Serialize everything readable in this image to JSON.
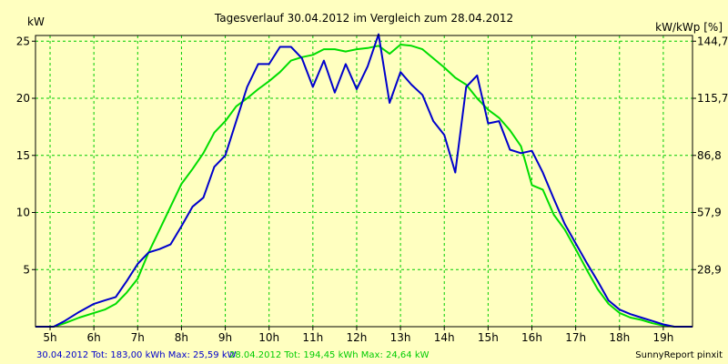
{
  "chart_data": {
    "type": "line",
    "title": "Tagesverlauf 30.04.2012 im Vergleich zum 28.04.2012",
    "ylabel_left": "kW",
    "ylabel_right": "kW/kWp [%]",
    "x_ticks": [
      "5h",
      "6h",
      "7h",
      "8h",
      "9h",
      "10h",
      "11h",
      "12h",
      "13h",
      "14h",
      "15h",
      "16h",
      "17h",
      "18h",
      "19h"
    ],
    "x_tick_values": [
      5,
      6,
      7,
      8,
      9,
      10,
      11,
      12,
      13,
      14,
      15,
      16,
      17,
      18,
      19
    ],
    "xlim": [
      4.667,
      19.667
    ],
    "y_ticks_left": [
      "5",
      "10",
      "15",
      "20",
      "25"
    ],
    "y_tick_values_left": [
      5,
      10,
      15,
      20,
      25
    ],
    "y_ticks_right": [
      "28,9",
      "57,9",
      "86,8",
      "115,7",
      "144,7"
    ],
    "ylim": [
      0,
      25.5
    ],
    "grid": true,
    "series": [
      {
        "name": "30.04.2012",
        "color": "#0000cc",
        "x": [
          4.667,
          5.083,
          5.333,
          5.667,
          6.0,
          6.25,
          6.5,
          6.75,
          7.0,
          7.25,
          7.5,
          7.75,
          8.0,
          8.25,
          8.5,
          8.75,
          9.0,
          9.25,
          9.5,
          9.75,
          10.0,
          10.25,
          10.5,
          10.75,
          11.0,
          11.25,
          11.5,
          11.75,
          12.0,
          12.25,
          12.5,
          12.75,
          13.0,
          13.25,
          13.5,
          13.75,
          14.0,
          14.25,
          14.5,
          14.75,
          15.0,
          15.25,
          15.5,
          15.75,
          16.0,
          16.25,
          16.5,
          16.75,
          17.0,
          17.25,
          17.5,
          17.75,
          18.0,
          18.25,
          18.5,
          18.75,
          19.0,
          19.25,
          19.667
        ],
        "y": [
          0,
          0,
          0.5,
          1.3,
          2,
          2.3,
          2.6,
          4,
          5.5,
          6.5,
          6.8,
          7.2,
          8.8,
          10.5,
          11.3,
          14,
          15,
          18,
          21,
          23,
          23,
          24.5,
          24.5,
          23.5,
          21,
          23.3,
          20.5,
          23,
          20.8,
          22.8,
          25.6,
          19.6,
          22.3,
          21.2,
          20.3,
          18,
          16.8,
          13.5,
          21,
          22,
          17.8,
          18,
          15.5,
          15.2,
          15.4,
          13.5,
          11.2,
          9,
          7.3,
          5.6,
          4,
          2.3,
          1.5,
          1.1,
          0.8,
          0.5,
          0.2,
          0,
          0
        ]
      },
      {
        "name": "28.04.2012",
        "color": "#00dd00",
        "x": [
          4.667,
          5.083,
          5.333,
          5.667,
          6.0,
          6.25,
          6.5,
          6.75,
          7.0,
          7.25,
          7.5,
          7.75,
          8.0,
          8.25,
          8.5,
          8.75,
          9.0,
          9.25,
          9.5,
          9.75,
          10.0,
          10.25,
          10.5,
          10.75,
          11.0,
          11.25,
          11.5,
          11.75,
          12.0,
          12.25,
          12.5,
          12.75,
          13.0,
          13.25,
          13.5,
          13.75,
          14.0,
          14.25,
          14.5,
          14.75,
          15.0,
          15.25,
          15.5,
          15.75,
          16.0,
          16.25,
          16.5,
          16.75,
          17.0,
          17.25,
          17.5,
          17.75,
          18.0,
          18.25,
          18.5,
          18.75,
          19.0,
          19.25,
          19.667
        ],
        "y": [
          0,
          0,
          0.3,
          0.8,
          1.2,
          1.5,
          2,
          3,
          4.2,
          6.5,
          8.5,
          10.5,
          12.5,
          13.8,
          15.2,
          17,
          18,
          19.3,
          20,
          20.8,
          21.5,
          22.3,
          23.3,
          23.6,
          23.8,
          24.3,
          24.3,
          24.1,
          24.3,
          24.4,
          24.6,
          23.9,
          24.7,
          24.6,
          24.3,
          23.5,
          22.7,
          21.8,
          21.2,
          20,
          19,
          18.3,
          17.2,
          15.8,
          12.4,
          12,
          9.8,
          8.5,
          6.8,
          5,
          3.3,
          2,
          1.2,
          0.8,
          0.6,
          0.3,
          0.1,
          0,
          0
        ]
      }
    ],
    "footer": {
      "s1": "30.04.2012 Tot: 183,00 kWh Max: 25,59 kW",
      "s2": "28.04.2012 Tot: 194,45 kWh Max: 24,64 kW",
      "credit": "SunnyReport pinxit"
    },
    "colors": {
      "background": "#ffffc0",
      "grid": "#00cc00",
      "axis": "#000000"
    }
  }
}
